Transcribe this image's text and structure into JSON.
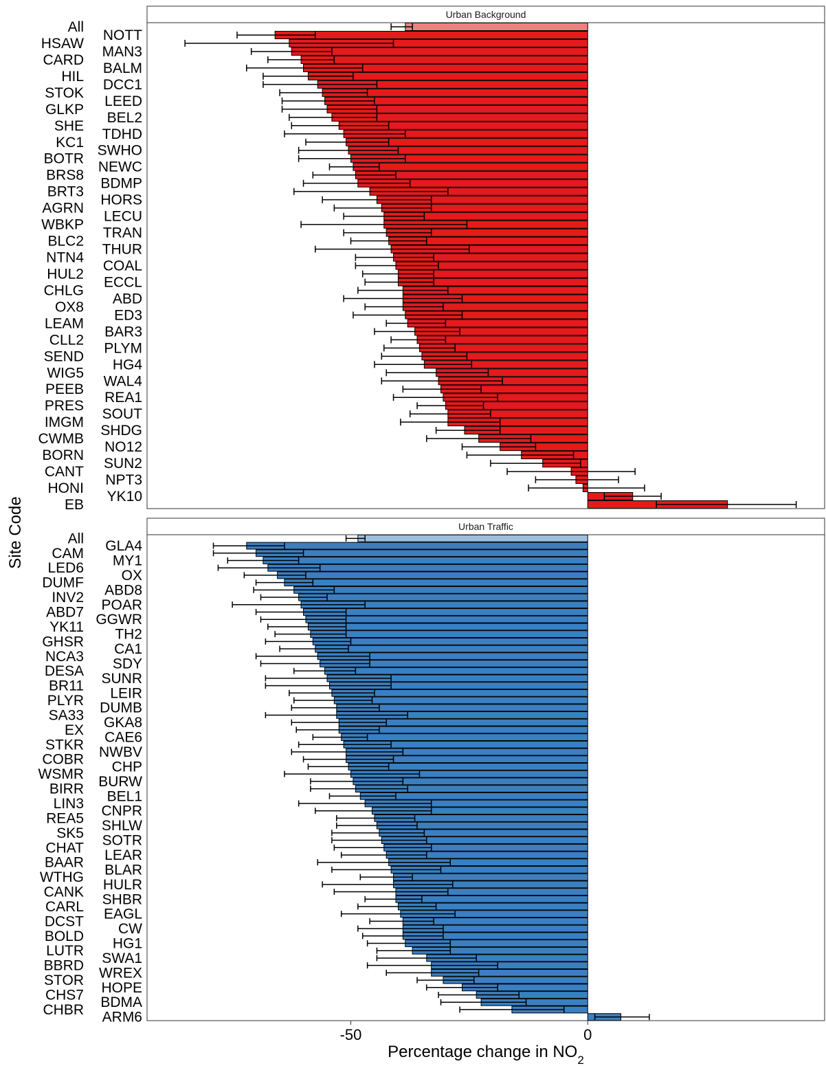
{
  "chart_data": {
    "type": "bar",
    "orientation": "horizontal",
    "ylabel": "Site Code",
    "xlabel": "Percentage change in NO",
    "xlabel_subscript": "2",
    "xlim": [
      -93,
      50
    ],
    "x_ticks": [
      -50,
      0
    ],
    "x_tick_labels": [
      "-50",
      "0"
    ],
    "grid": false,
    "panels": [
      {
        "title": "Urban Background",
        "color": "#e41a1c",
        "all_color": "#f08080",
        "bars": [
          {
            "label": "All",
            "value": -38.5,
            "lo": -41.5,
            "hi": -37.0
          },
          {
            "label": "NOTT",
            "value": -66,
            "lo": -74,
            "hi": -57.5
          },
          {
            "label": "HSAW",
            "value": -63,
            "lo": -85,
            "hi": -41
          },
          {
            "label": "MAN3",
            "value": -62.5,
            "lo": -71,
            "hi": -54
          },
          {
            "label": "CARD",
            "value": -60.5,
            "lo": -67.5,
            "hi": -53.5
          },
          {
            "label": "BALM",
            "value": -60,
            "lo": -72,
            "hi": -47.5
          },
          {
            "label": "HIL",
            "value": -59,
            "lo": -68.5,
            "hi": -49.5
          },
          {
            "label": "DCC1",
            "value": -57,
            "lo": -68.5,
            "hi": -44.5
          },
          {
            "label": "STOK",
            "value": -56,
            "lo": -65,
            "hi": -46.5
          },
          {
            "label": "LEED",
            "value": -55.5,
            "lo": -64.5,
            "hi": -45
          },
          {
            "label": "GLKP",
            "value": -55,
            "lo": -64.5,
            "hi": -44.5
          },
          {
            "label": "BEL2",
            "value": -54,
            "lo": -63,
            "hi": -44.5
          },
          {
            "label": "SHE",
            "value": -52.5,
            "lo": -62.5,
            "hi": -42
          },
          {
            "label": "TDHD",
            "value": -51.5,
            "lo": -64,
            "hi": -38.5
          },
          {
            "label": "KC1",
            "value": -51,
            "lo": -59.5,
            "hi": -42
          },
          {
            "label": "SWHO",
            "value": -50.5,
            "lo": -61,
            "hi": -40
          },
          {
            "label": "BOTR",
            "value": -50,
            "lo": -61,
            "hi": -38.5
          },
          {
            "label": "NEWC",
            "value": -49.5,
            "lo": -54.5,
            "hi": -44
          },
          {
            "label": "BRS8",
            "value": -49,
            "lo": -58,
            "hi": -40.5
          },
          {
            "label": "BDMP",
            "value": -48.5,
            "lo": -60,
            "hi": -37.5
          },
          {
            "label": "BRT3",
            "value": -46,
            "lo": -62,
            "hi": -29.5
          },
          {
            "label": "HORS",
            "value": -44.5,
            "lo": -56,
            "hi": -33
          },
          {
            "label": "AGRN",
            "value": -43.5,
            "lo": -53.5,
            "hi": -33
          },
          {
            "label": "LECU",
            "value": -43,
            "lo": -51.5,
            "hi": -34.5
          },
          {
            "label": "WBKP",
            "value": -43,
            "lo": -60.5,
            "hi": -25.5
          },
          {
            "label": "TRAN",
            "value": -42.5,
            "lo": -51.5,
            "hi": -33
          },
          {
            "label": "BLC2",
            "value": -42,
            "lo": -50,
            "hi": -34
          },
          {
            "label": "THUR",
            "value": -41.5,
            "lo": -57.5,
            "hi": -25
          },
          {
            "label": "NTN4",
            "value": -41,
            "lo": -49,
            "hi": -32.5
          },
          {
            "label": "COAL",
            "value": -40.5,
            "lo": -49,
            "hi": -31.5
          },
          {
            "label": "HUL2",
            "value": -40,
            "lo": -47.5,
            "hi": -32.5
          },
          {
            "label": "ECCL",
            "value": -40,
            "lo": -47,
            "hi": -32.5
          },
          {
            "label": "CHLG",
            "value": -39,
            "lo": -48.5,
            "hi": -29.5
          },
          {
            "label": "ABD",
            "value": -39,
            "lo": -51.5,
            "hi": -26.5
          },
          {
            "label": "OX8",
            "value": -39,
            "lo": -47,
            "hi": -30.5
          },
          {
            "label": "ED3",
            "value": -38.5,
            "lo": -49.5,
            "hi": -26.5
          },
          {
            "label": "LEAM",
            "value": -38,
            "lo": -42.5,
            "hi": -30
          },
          {
            "label": "BAR3",
            "value": -36.5,
            "lo": -45,
            "hi": -27
          },
          {
            "label": "CLL2",
            "value": -36,
            "lo": -41.5,
            "hi": -30
          },
          {
            "label": "PLYM",
            "value": -35.5,
            "lo": -43,
            "hi": -28
          },
          {
            "label": "SEND",
            "value": -35,
            "lo": -43.5,
            "hi": -25.5
          },
          {
            "label": "HG4",
            "value": -34.5,
            "lo": -45,
            "hi": -24.5
          },
          {
            "label": "WIG5",
            "value": -32,
            "lo": -42.5,
            "hi": -21
          },
          {
            "label": "WAL4",
            "value": -31.5,
            "lo": -43.5,
            "hi": -18
          },
          {
            "label": "PEEB",
            "value": -31,
            "lo": -39,
            "hi": -22.5
          },
          {
            "label": "REA1",
            "value": -30.5,
            "lo": -41,
            "hi": -19
          },
          {
            "label": "PRES",
            "value": -30,
            "lo": -36,
            "hi": -22
          },
          {
            "label": "SOUT",
            "value": -29.5,
            "lo": -37.5,
            "hi": -20.5
          },
          {
            "label": "IMGM",
            "value": -29.5,
            "lo": -39.5,
            "hi": -18.5
          },
          {
            "label": "SHDG",
            "value": -26,
            "lo": -32,
            "hi": -18.5
          },
          {
            "label": "CWMB",
            "value": -23,
            "lo": -34,
            "hi": -12
          },
          {
            "label": "NO12",
            "value": -18.5,
            "lo": -26.5,
            "hi": -11
          },
          {
            "label": "BORN",
            "value": -14,
            "lo": -25.5,
            "hi": -3
          },
          {
            "label": "SUN2",
            "value": -9.5,
            "lo": -20.5,
            "hi": -1.5
          },
          {
            "label": "CANT",
            "value": -3.5,
            "lo": -17,
            "hi": 10
          },
          {
            "label": "NPT3",
            "value": -2.5,
            "lo": -11,
            "hi": 6.5
          },
          {
            "label": "HONI",
            "value": -1,
            "lo": -12.5,
            "hi": 12
          },
          {
            "label": "YK10",
            "value": 9.5,
            "lo": 3.5,
            "hi": 15.5
          },
          {
            "label": "EB",
            "value": 29.5,
            "lo": 14.5,
            "hi": 44
          }
        ]
      },
      {
        "title": "Urban Traffic",
        "color": "#3a7fc1",
        "all_color": "#9dbfdf",
        "bars": [
          {
            "label": "All",
            "value": -48.5,
            "lo": -51,
            "hi": -47
          },
          {
            "label": "GLA4",
            "value": -72,
            "lo": -79,
            "hi": -64
          },
          {
            "label": "CAM",
            "value": -70,
            "lo": -79,
            "hi": -60
          },
          {
            "label": "MY1",
            "value": -68.5,
            "lo": -76,
            "hi": -61
          },
          {
            "label": "LED6",
            "value": -67.5,
            "lo": -78,
            "hi": -56.5
          },
          {
            "label": "OX",
            "value": -65.5,
            "lo": -72.5,
            "hi": -59.5
          },
          {
            "label": "DUMF",
            "value": -64,
            "lo": -70,
            "hi": -58
          },
          {
            "label": "ABD8",
            "value": -62,
            "lo": -70.5,
            "hi": -53.5
          },
          {
            "label": "INV2",
            "value": -61,
            "lo": -69,
            "hi": -55
          },
          {
            "label": "POAR",
            "value": -60.5,
            "lo": -75,
            "hi": -47
          },
          {
            "label": "ABD7",
            "value": -60,
            "lo": -70,
            "hi": -51
          },
          {
            "label": "GGWR",
            "value": -59.5,
            "lo": -69,
            "hi": -51
          },
          {
            "label": "YK11",
            "value": -59,
            "lo": -67.5,
            "hi": -51
          },
          {
            "label": "TH2",
            "value": -58.5,
            "lo": -66,
            "hi": -51
          },
          {
            "label": "GHSR",
            "value": -58,
            "lo": -68,
            "hi": -50
          },
          {
            "label": "CA1",
            "value": -57.5,
            "lo": -65,
            "hi": -50.5
          },
          {
            "label": "NCA3",
            "value": -57,
            "lo": -70,
            "hi": -46
          },
          {
            "label": "SDY",
            "value": -56.5,
            "lo": -69,
            "hi": -46
          },
          {
            "label": "DESA",
            "value": -55.5,
            "lo": -62,
            "hi": -49
          },
          {
            "label": "SUNR",
            "value": -55,
            "lo": -68,
            "hi": -41.5
          },
          {
            "label": "BR11",
            "value": -54.5,
            "lo": -68,
            "hi": -41.5
          },
          {
            "label": "LEIR",
            "value": -54,
            "lo": -63,
            "hi": -45
          },
          {
            "label": "PLYR",
            "value": -53.5,
            "lo": -62,
            "hi": -45.5
          },
          {
            "label": "DUMB",
            "value": -53,
            "lo": -62.5,
            "hi": -44
          },
          {
            "label": "SA33",
            "value": -53,
            "lo": -68,
            "hi": -38
          },
          {
            "label": "GKA8",
            "value": -52.5,
            "lo": -62.5,
            "hi": -42.5
          },
          {
            "label": "EX",
            "value": -52.5,
            "lo": -61.5,
            "hi": -44
          },
          {
            "label": "CAE6",
            "value": -52,
            "lo": -58,
            "hi": -46.5
          },
          {
            "label": "STKR",
            "value": -51.5,
            "lo": -61,
            "hi": -41.5
          },
          {
            "label": "NWBV",
            "value": -51,
            "lo": -62.5,
            "hi": -39
          },
          {
            "label": "COBR",
            "value": -51,
            "lo": -60,
            "hi": -41
          },
          {
            "label": "CHP",
            "value": -50.5,
            "lo": -59,
            "hi": -42
          },
          {
            "label": "WSMR",
            "value": -50,
            "lo": -64,
            "hi": -35.5
          },
          {
            "label": "BURW",
            "value": -49.5,
            "lo": -58.5,
            "hi": -39
          },
          {
            "label": "BIRR",
            "value": -49,
            "lo": -58.5,
            "hi": -38
          },
          {
            "label": "BEL1",
            "value": -48,
            "lo": -54.5,
            "hi": -40.5
          },
          {
            "label": "LIN3",
            "value": -47,
            "lo": -61,
            "hi": -33
          },
          {
            "label": "CNPR",
            "value": -45.5,
            "lo": -57.5,
            "hi": -33
          },
          {
            "label": "REA5",
            "value": -45,
            "lo": -53,
            "hi": -36.5
          },
          {
            "label": "SHLW",
            "value": -44.5,
            "lo": -53,
            "hi": -36
          },
          {
            "label": "SK5",
            "value": -44,
            "lo": -54,
            "hi": -34.5
          },
          {
            "label": "SOTR",
            "value": -43.5,
            "lo": -54,
            "hi": -34
          },
          {
            "label": "CHAT",
            "value": -43,
            "lo": -53.5,
            "hi": -33
          },
          {
            "label": "LEAR",
            "value": -42.5,
            "lo": -52,
            "hi": -34
          },
          {
            "label": "BAAR",
            "value": -42,
            "lo": -57,
            "hi": -29
          },
          {
            "label": "BLAR",
            "value": -41.5,
            "lo": -54,
            "hi": -31
          },
          {
            "label": "WTHG",
            "value": -41,
            "lo": -48,
            "hi": -37
          },
          {
            "label": "HULR",
            "value": -41,
            "lo": -56,
            "hi": -28.5
          },
          {
            "label": "CANK",
            "value": -40.5,
            "lo": -53.5,
            "hi": -29.5
          },
          {
            "label": "SHBR",
            "value": -40.5,
            "lo": -47,
            "hi": -35
          },
          {
            "label": "CARL",
            "value": -40,
            "lo": -48.5,
            "hi": -32
          },
          {
            "label": "EAGL",
            "value": -39.5,
            "lo": -52,
            "hi": -28
          },
          {
            "label": "DCST",
            "value": -39,
            "lo": -46,
            "hi": -32.5
          },
          {
            "label": "CW",
            "value": -39,
            "lo": -48.5,
            "hi": -30.5
          },
          {
            "label": "BOLD",
            "value": -39,
            "lo": -47.5,
            "hi": -30.5
          },
          {
            "label": "HG1",
            "value": -38.5,
            "lo": -46.5,
            "hi": -29
          },
          {
            "label": "LUTR",
            "value": -37,
            "lo": -44.5,
            "hi": -29
          },
          {
            "label": "SWA1",
            "value": -34,
            "lo": -44.5,
            "hi": -23.5
          },
          {
            "label": "BBRD",
            "value": -33,
            "lo": -46.5,
            "hi": -19
          },
          {
            "label": "WREX",
            "value": -33,
            "lo": -42.5,
            "hi": -23
          },
          {
            "label": "STOR",
            "value": -30.5,
            "lo": -36,
            "hi": -24
          },
          {
            "label": "HOPE",
            "value": -26.5,
            "lo": -34,
            "hi": -19
          },
          {
            "label": "CHS7",
            "value": -23.5,
            "lo": -31.5,
            "hi": -14.5
          },
          {
            "label": "BDMA",
            "value": -22.5,
            "lo": -31,
            "hi": -13
          },
          {
            "label": "CHBR",
            "value": -16,
            "lo": -27,
            "hi": -5
          },
          {
            "label": "ARM6",
            "value": 7,
            "lo": 1.5,
            "hi": 13
          }
        ]
      }
    ]
  }
}
